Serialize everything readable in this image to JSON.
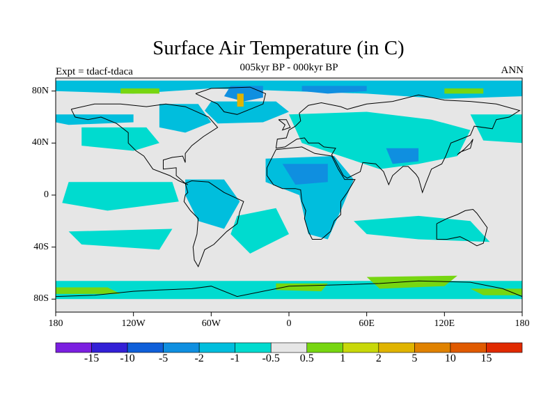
{
  "title": "Surface Air Temperature (in C)",
  "subtitle": "005kyr BP - 000kyr BP",
  "left_label": "Expt = tdacf-tdaca",
  "right_label": "ANN",
  "map": {
    "projection": "equirectangular",
    "lon_range": [
      -180,
      180
    ],
    "lat_range": [
      -90,
      90
    ],
    "background_color": "#e6e6e6",
    "coastline_color": "#000000"
  },
  "axes": {
    "y_ticks": [
      {
        "label": "80N",
        "lat": 80
      },
      {
        "label": "40N",
        "lat": 40
      },
      {
        "label": "0",
        "lat": 0
      },
      {
        "label": "40S",
        "lat": -40
      },
      {
        "label": "80S",
        "lat": -80
      }
    ],
    "x_ticks": [
      {
        "label": "180",
        "lon": -180
      },
      {
        "label": "120W",
        "lon": -120
      },
      {
        "label": "60W",
        "lon": -60
      },
      {
        "label": "0",
        "lon": 0
      },
      {
        "label": "60E",
        "lon": 60
      },
      {
        "label": "120E",
        "lon": 120
      },
      {
        "label": "180",
        "lon": 180
      }
    ]
  },
  "colorbar": {
    "colors": [
      "#7b1fe0",
      "#3320d6",
      "#0f5fd9",
      "#0f8fe0",
      "#00bedd",
      "#00dbcf",
      "#e6e6e6",
      "#77d611",
      "#c8d80a",
      "#e0b400",
      "#e08200",
      "#e05a00",
      "#e02a00"
    ],
    "labels": [
      "-15",
      "-10",
      "-5",
      "-2",
      "-1",
      "-0.5",
      "0.5",
      "1",
      "2",
      "5",
      "10",
      "15"
    ]
  },
  "regions": [
    {
      "name": "arctic-band",
      "level": "-1",
      "color": "#00bedd",
      "points": [
        [
          -180,
          88
        ],
        [
          180,
          88
        ],
        [
          180,
          76
        ],
        [
          120,
          74
        ],
        [
          60,
          78
        ],
        [
          0,
          80
        ],
        [
          -60,
          82
        ],
        [
          -120,
          78
        ],
        [
          -180,
          80
        ]
      ]
    },
    {
      "name": "greenland-cool",
      "level": "-2",
      "color": "#0f8fe0",
      "points": [
        [
          -45,
          84
        ],
        [
          -20,
          84
        ],
        [
          -20,
          75
        ],
        [
          -35,
          72
        ],
        [
          -50,
          76
        ]
      ]
    },
    {
      "name": "siberia-cool",
      "level": "-2",
      "color": "#0f8fe0",
      "points": [
        [
          10,
          84
        ],
        [
          60,
          84
        ],
        [
          60,
          80
        ],
        [
          30,
          78
        ],
        [
          10,
          80
        ]
      ]
    },
    {
      "name": "n-atlantic",
      "level": "-1",
      "color": "#00bedd",
      "points": [
        [
          -60,
          72
        ],
        [
          -10,
          72
        ],
        [
          0,
          64
        ],
        [
          -20,
          56
        ],
        [
          -55,
          55
        ],
        [
          -65,
          65
        ]
      ]
    },
    {
      "name": "n-pacific",
      "level": "-1",
      "color": "#00bedd",
      "points": [
        [
          -180,
          62
        ],
        [
          -120,
          62
        ],
        [
          -120,
          56
        ],
        [
          -170,
          54
        ],
        [
          -180,
          56
        ]
      ]
    },
    {
      "name": "nw-atlantic",
      "level": "-0.5",
      "color": "#00dbcf",
      "points": [
        [
          -160,
          52
        ],
        [
          -110,
          52
        ],
        [
          -100,
          40
        ],
        [
          -120,
          34
        ],
        [
          -160,
          38
        ]
      ]
    },
    {
      "name": "north-america",
      "level": "-1",
      "color": "#00bedd",
      "points": [
        [
          -100,
          70
        ],
        [
          -70,
          70
        ],
        [
          -60,
          56
        ],
        [
          -80,
          48
        ],
        [
          -100,
          52
        ]
      ]
    },
    {
      "name": "trop-pacific",
      "level": "-0.5",
      "color": "#00dbcf",
      "points": [
        [
          -170,
          10
        ],
        [
          -90,
          10
        ],
        [
          -85,
          -5
        ],
        [
          -140,
          -12
        ],
        [
          -175,
          -6
        ]
      ]
    },
    {
      "name": "s-pacific",
      "level": "-0.5",
      "color": "#00dbcf",
      "points": [
        [
          -170,
          -28
        ],
        [
          -90,
          -26
        ],
        [
          -100,
          -42
        ],
        [
          -160,
          -38
        ]
      ]
    },
    {
      "name": "amazon",
      "level": "-1",
      "color": "#00bedd",
      "points": [
        [
          -80,
          12
        ],
        [
          -50,
          12
        ],
        [
          -38,
          -5
        ],
        [
          -50,
          -26
        ],
        [
          -70,
          -20
        ],
        [
          -80,
          0
        ]
      ]
    },
    {
      "name": "s-atlantic",
      "level": "-0.5",
      "color": "#00dbcf",
      "points": [
        [
          -40,
          -16
        ],
        [
          -10,
          -10
        ],
        [
          0,
          -30
        ],
        [
          -30,
          -45
        ],
        [
          -45,
          -30
        ]
      ]
    },
    {
      "name": "africa",
      "level": "-1",
      "color": "#00bedd",
      "points": [
        [
          -18,
          28
        ],
        [
          35,
          30
        ],
        [
          50,
          12
        ],
        [
          40,
          -12
        ],
        [
          30,
          -34
        ],
        [
          15,
          -30
        ],
        [
          8,
          0
        ],
        [
          -18,
          10
        ]
      ]
    },
    {
      "name": "sahara-cool",
      "level": "-2",
      "color": "#0f8fe0",
      "points": [
        [
          -5,
          24
        ],
        [
          30,
          24
        ],
        [
          30,
          10
        ],
        [
          5,
          8
        ]
      ]
    },
    {
      "name": "europe-asia",
      "level": "-0.5",
      "color": "#00dbcf",
      "points": [
        [
          0,
          62
        ],
        [
          60,
          64
        ],
        [
          110,
          58
        ],
        [
          140,
          50
        ],
        [
          130,
          30
        ],
        [
          100,
          24
        ],
        [
          70,
          20
        ],
        [
          40,
          30
        ],
        [
          10,
          40
        ]
      ]
    },
    {
      "name": "tibet-cool",
      "level": "-2",
      "color": "#0f8fe0",
      "points": [
        [
          75,
          36
        ],
        [
          100,
          36
        ],
        [
          100,
          26
        ],
        [
          80,
          24
        ]
      ]
    },
    {
      "name": "indian-ocean",
      "level": "-0.5",
      "color": "#00dbcf",
      "points": [
        [
          50,
          -20
        ],
        [
          100,
          -16
        ],
        [
          140,
          -20
        ],
        [
          155,
          -36
        ],
        [
          100,
          -34
        ],
        [
          60,
          -30
        ]
      ]
    },
    {
      "name": "e-pacific-north",
      "level": "-0.5",
      "color": "#00dbcf",
      "points": [
        [
          140,
          62
        ],
        [
          180,
          62
        ],
        [
          180,
          40
        ],
        [
          150,
          42
        ]
      ]
    },
    {
      "name": "southern-ocean",
      "level": "-0.5",
      "color": "#00dbcf",
      "points": [
        [
          -180,
          -66
        ],
        [
          180,
          -66
        ],
        [
          180,
          -80
        ],
        [
          -180,
          -80
        ]
      ]
    },
    {
      "name": "antarctic-warm-1",
      "level": "1",
      "color": "#77d611",
      "points": [
        [
          -180,
          -71
        ],
        [
          -140,
          -71
        ],
        [
          -130,
          -76
        ],
        [
          -180,
          -76
        ]
      ]
    },
    {
      "name": "antarctic-warm-2",
      "level": "1",
      "color": "#77d611",
      "points": [
        [
          -10,
          -68
        ],
        [
          30,
          -68
        ],
        [
          25,
          -74
        ],
        [
          -10,
          -73
        ]
      ]
    },
    {
      "name": "antarctic-warm-3",
      "level": "1",
      "color": "#77d611",
      "points": [
        [
          60,
          -63
        ],
        [
          130,
          -62
        ],
        [
          120,
          -70
        ],
        [
          70,
          -72
        ]
      ]
    },
    {
      "name": "antarctic-warm-4",
      "level": "1",
      "color": "#77d611",
      "points": [
        [
          140,
          -72
        ],
        [
          180,
          -72
        ],
        [
          180,
          -77
        ],
        [
          150,
          -77
        ]
      ]
    },
    {
      "name": "arctic-warm-1",
      "level": "1",
      "color": "#77d611",
      "points": [
        [
          -130,
          82
        ],
        [
          -100,
          82
        ],
        [
          -100,
          78
        ],
        [
          -130,
          78
        ]
      ]
    },
    {
      "name": "arctic-warm-2",
      "level": "1",
      "color": "#77d611",
      "points": [
        [
          120,
          82
        ],
        [
          150,
          82
        ],
        [
          150,
          78
        ],
        [
          120,
          78
        ]
      ]
    },
    {
      "name": "greenland-warm",
      "level": "5",
      "color": "#e0b400",
      "points": [
        [
          -40,
          78
        ],
        [
          -35,
          78
        ],
        [
          -35,
          68
        ],
        [
          -40,
          68
        ]
      ]
    }
  ],
  "coastlines": [
    [
      [
        -168,
        66
      ],
      [
        -150,
        70
      ],
      [
        -130,
        70
      ],
      [
        -110,
        68
      ],
      [
        -95,
        70
      ],
      [
        -80,
        68
      ],
      [
        -62,
        60
      ],
      [
        -55,
        52
      ],
      [
        -66,
        45
      ],
      [
        -75,
        38
      ],
      [
        -80,
        32
      ],
      [
        -80,
        25
      ],
      [
        -82,
        30
      ],
      [
        -90,
        29
      ],
      [
        -97,
        27
      ],
      [
        -97,
        20
      ],
      [
        -87,
        21
      ],
      [
        -87,
        15
      ],
      [
        -80,
        9
      ],
      [
        -78,
        8
      ],
      [
        -85,
        11
      ],
      [
        -92,
        15
      ],
      [
        -105,
        20
      ],
      [
        -112,
        30
      ],
      [
        -118,
        34
      ],
      [
        -124,
        40
      ],
      [
        -124,
        48
      ],
      [
        -133,
        55
      ],
      [
        -145,
        60
      ],
      [
        -155,
        58
      ],
      [
        -165,
        60
      ],
      [
        -168,
        66
      ]
    ],
    [
      [
        -80,
        9
      ],
      [
        -75,
        11
      ],
      [
        -62,
        10
      ],
      [
        -50,
        2
      ],
      [
        -35,
        -5
      ],
      [
        -38,
        -13
      ],
      [
        -40,
        -22
      ],
      [
        -48,
        -28
      ],
      [
        -58,
        -38
      ],
      [
        -65,
        -42
      ],
      [
        -68,
        -50
      ],
      [
        -70,
        -55
      ],
      [
        -73,
        -50
      ],
      [
        -74,
        -40
      ],
      [
        -71,
        -30
      ],
      [
        -70,
        -18
      ],
      [
        -76,
        -12
      ],
      [
        -81,
        -5
      ],
      [
        -80,
        0
      ],
      [
        -78,
        2
      ],
      [
        -80,
        9
      ]
    ],
    [
      [
        -72,
        78
      ],
      [
        -60,
        82
      ],
      [
        -30,
        83
      ],
      [
        -18,
        78
      ],
      [
        -20,
        70
      ],
      [
        -40,
        62
      ],
      [
        -50,
        64
      ],
      [
        -55,
        70
      ],
      [
        -72,
        78
      ]
    ],
    [
      [
        -10,
        36
      ],
      [
        -9,
        43
      ],
      [
        -2,
        44
      ],
      [
        0,
        50
      ],
      [
        5,
        53
      ],
      [
        9,
        57
      ],
      [
        8,
        63
      ],
      [
        15,
        69
      ],
      [
        25,
        71
      ],
      [
        40,
        68
      ],
      [
        45,
        66
      ],
      [
        60,
        70
      ],
      [
        80,
        72
      ],
      [
        100,
        77
      ],
      [
        120,
        73
      ],
      [
        140,
        72
      ],
      [
        160,
        70
      ],
      [
        178,
        65
      ],
      [
        170,
        60
      ],
      [
        160,
        58
      ],
      [
        157,
        51
      ],
      [
        143,
        53
      ],
      [
        140,
        46
      ],
      [
        130,
        42
      ],
      [
        125,
        40
      ],
      [
        121,
        30
      ],
      [
        118,
        24
      ],
      [
        110,
        20
      ],
      [
        106,
        10
      ],
      [
        103,
        2
      ],
      [
        100,
        13
      ],
      [
        98,
        16
      ],
      [
        92,
        22
      ],
      [
        88,
        22
      ],
      [
        80,
        15
      ],
      [
        77,
        8
      ],
      [
        73,
        18
      ],
      [
        67,
        24
      ],
      [
        57,
        25
      ],
      [
        55,
        18
      ],
      [
        45,
        13
      ],
      [
        42,
        15
      ],
      [
        35,
        28
      ],
      [
        33,
        31
      ],
      [
        36,
        36
      ],
      [
        27,
        37
      ],
      [
        23,
        40
      ],
      [
        15,
        40
      ],
      [
        12,
        44
      ],
      [
        6,
        43
      ],
      [
        -3,
        37
      ],
      [
        -10,
        36
      ]
    ],
    [
      [
        -17,
        21
      ],
      [
        -17,
        15
      ],
      [
        -12,
        8
      ],
      [
        -5,
        5
      ],
      [
        5,
        5
      ],
      [
        9,
        4
      ],
      [
        10,
        -5
      ],
      [
        13,
        -12
      ],
      [
        12,
        -18
      ],
      [
        15,
        -28
      ],
      [
        18,
        -34
      ],
      [
        25,
        -34
      ],
      [
        32,
        -28
      ],
      [
        35,
        -20
      ],
      [
        40,
        -15
      ],
      [
        40,
        -5
      ],
      [
        45,
        2
      ],
      [
        51,
        12
      ],
      [
        43,
        12
      ],
      [
        38,
        20
      ],
      [
        33,
        30
      ],
      [
        20,
        32
      ],
      [
        10,
        37
      ],
      [
        0,
        36
      ],
      [
        -10,
        35
      ],
      [
        -17,
        21
      ]
    ],
    [
      [
        114,
        -22
      ],
      [
        114,
        -34
      ],
      [
        122,
        -34
      ],
      [
        132,
        -32
      ],
      [
        138,
        -35
      ],
      [
        145,
        -39
      ],
      [
        150,
        -37
      ],
      [
        153,
        -25
      ],
      [
        145,
        -14
      ],
      [
        142,
        -11
      ],
      [
        136,
        -12
      ],
      [
        130,
        -15
      ],
      [
        122,
        -18
      ],
      [
        114,
        -22
      ]
    ],
    [
      [
        -180,
        -78
      ],
      [
        -150,
        -77
      ],
      [
        -120,
        -74
      ],
      [
        -100,
        -73
      ],
      [
        -75,
        -72
      ],
      [
        -60,
        -70
      ],
      [
        -40,
        -78
      ],
      [
        -20,
        -74
      ],
      [
        0,
        -70
      ],
      [
        40,
        -69
      ],
      [
        70,
        -68
      ],
      [
        100,
        -66
      ],
      [
        140,
        -67
      ],
      [
        165,
        -72
      ],
      [
        180,
        -78
      ]
    ],
    [
      [
        -8,
        58
      ],
      [
        -2,
        58
      ],
      [
        1,
        52
      ],
      [
        -5,
        50
      ],
      [
        -3,
        54
      ],
      [
        -8,
        58
      ]
    ],
    [
      [
        130,
        31
      ],
      [
        135,
        35
      ],
      [
        140,
        40
      ],
      [
        142,
        43
      ],
      [
        140,
        36
      ],
      [
        132,
        33
      ],
      [
        130,
        31
      ]
    ]
  ]
}
